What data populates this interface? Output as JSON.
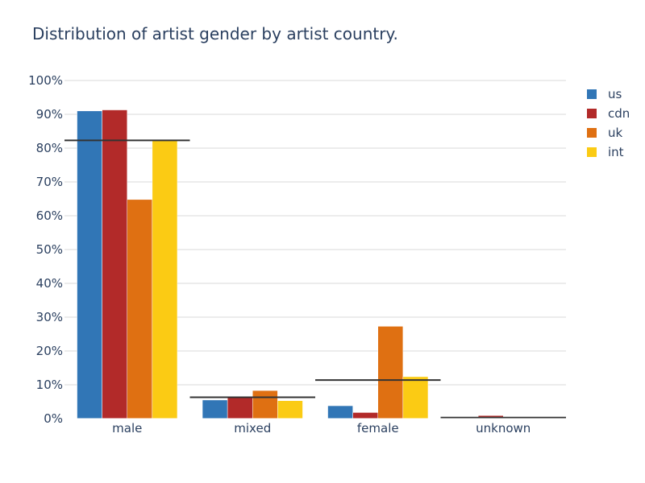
{
  "chart_data": {
    "type": "bar",
    "title": "Distribution of artist gender by artist country.",
    "xlabel": "",
    "ylabel": "",
    "categories": [
      "male",
      "mixed",
      "female",
      "unknown"
    ],
    "series": [
      {
        "name": "us",
        "color": "#3176b6",
        "values": [
          91.0,
          5.5,
          3.8,
          0.0
        ]
      },
      {
        "name": "cdn",
        "color": "#b22a29",
        "values": [
          91.3,
          6.4,
          1.8,
          0.9
        ]
      },
      {
        "name": "uk",
        "color": "#df7012",
        "values": [
          64.8,
          8.3,
          27.3,
          0.0
        ]
      },
      {
        "name": "int",
        "color": "#fbcb14",
        "values": [
          82.5,
          5.3,
          12.4,
          0.0
        ]
      }
    ],
    "reference_lines": {
      "color": "#333333",
      "values": [
        82.3,
        6.3,
        11.4,
        0.3
      ]
    },
    "ylim": [
      0,
      100
    ],
    "yticks": [
      "0%",
      "10%",
      "20%",
      "30%",
      "40%",
      "50%",
      "60%",
      "70%",
      "80%",
      "90%",
      "100%"
    ],
    "grid": true,
    "legend_position": "top-right"
  }
}
